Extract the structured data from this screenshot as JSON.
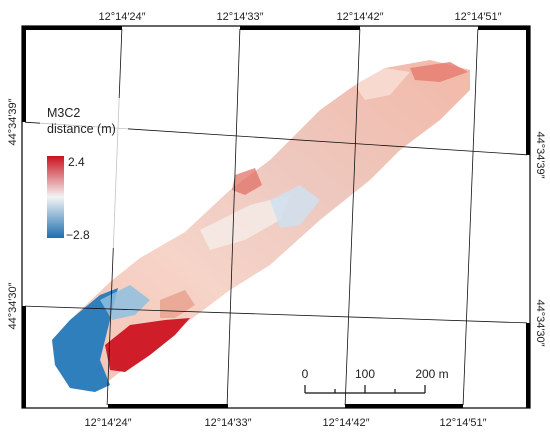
{
  "map": {
    "grid": {
      "top_labels": [
        "12°14′24″",
        "12°14′33″",
        "12°14′42″",
        "12°14′51″"
      ],
      "bottom_labels": [
        "12°14′24″",
        "12°14′33″",
        "12°14′42″",
        "12°14′51″"
      ],
      "left_labels": [
        "44°34′39″",
        "44°34′30″"
      ],
      "right_labels": [
        "44°34′39″",
        "44°34′30″"
      ]
    },
    "legend": {
      "title_line1": "M3C2",
      "title_line2": "distance (m)",
      "max_label": "2.4",
      "min_label": "−2.8",
      "colors": {
        "high": "#c9121f",
        "mid": "#f4f4f4",
        "low": "#1e6fb0"
      }
    },
    "scalebar": {
      "ticks": [
        "0",
        "100",
        "200 m"
      ]
    }
  }
}
